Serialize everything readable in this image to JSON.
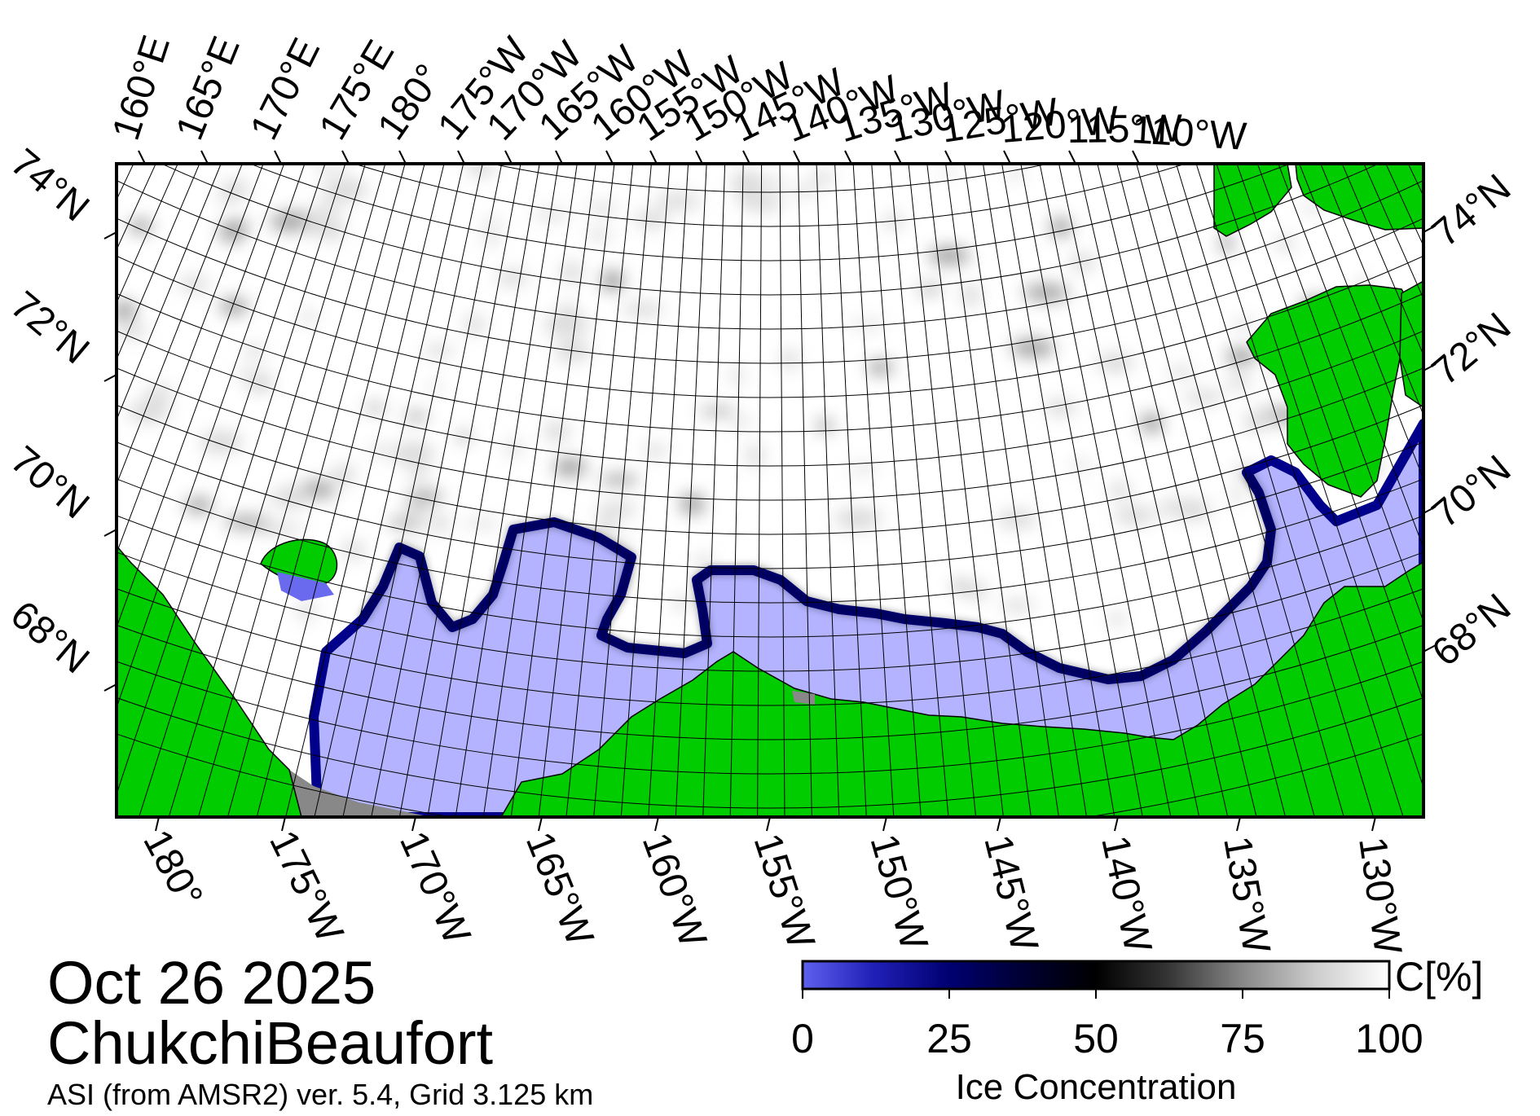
{
  "title": {
    "date": "Oct 26 2025",
    "region": "ChukchiBeaufort",
    "source": "ASI (from AMSR2) ver. 5.4,  Grid 3.125 km"
  },
  "colors": {
    "land": "#00cc00",
    "open_water": "#b3b3ff",
    "no_data": "#888888",
    "ice_high": "#ffffff",
    "ice_mid": "#000000",
    "ice_low": "#000066"
  },
  "map": {
    "top_longitude_labels": [
      "160°E",
      "165°E",
      "170°E",
      "175°E",
      "180°",
      "175°W",
      "170°W",
      "165°W",
      "160°W",
      "155°W",
      "150°W",
      "145°W",
      "140°W",
      "135°W",
      "130°W",
      "125°W",
      "120°W",
      "115°W",
      "110°W"
    ],
    "bottom_longitude_labels": [
      "180°",
      "175°W",
      "170°W",
      "165°W",
      "160°W",
      "155°W",
      "150°W",
      "145°W",
      "140°W",
      "135°W",
      "130°W"
    ],
    "left_latitude_labels": [
      "74°N",
      "72°N",
      "70°N",
      "68°N"
    ],
    "right_latitude_labels": [
      "74°N",
      "72°N",
      "70°N",
      "68°N"
    ]
  },
  "colorbar": {
    "unit": "C[%]",
    "label": "Ice Concentration",
    "ticks": [
      "0",
      "25",
      "50",
      "75",
      "100"
    ],
    "min": 0,
    "max": 100
  }
}
